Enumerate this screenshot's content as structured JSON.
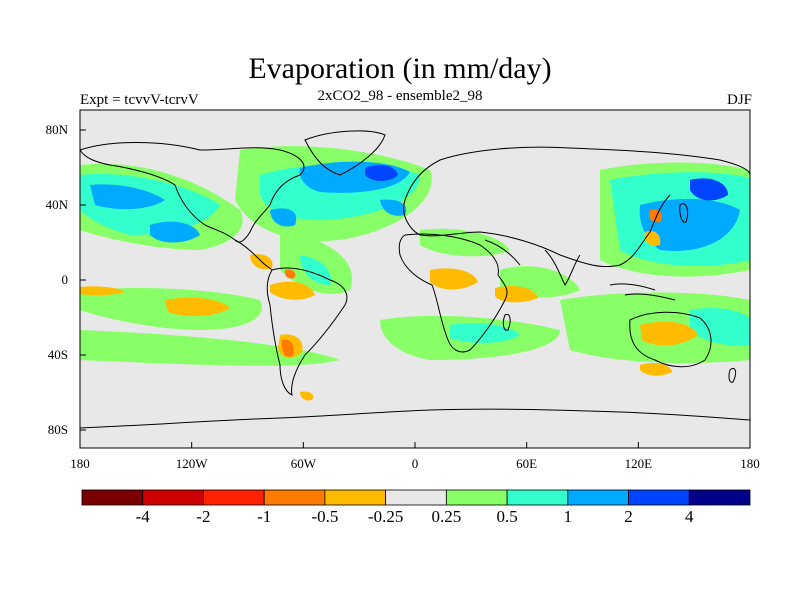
{
  "title": "Evaporation (in mm/day)",
  "experiment": "Expt = tcvvV-tcrvV",
  "subtitle": "2xCO2_98 - ensemble2_98",
  "season": "DJF",
  "lat_ticks": [
    "80N",
    "40N",
    "0",
    "40S",
    "80S"
  ],
  "lon_ticks": [
    "180",
    "120W",
    "60W",
    "0",
    "60E",
    "120E",
    "180"
  ],
  "colorbar": {
    "colors": [
      "#7a0000",
      "#cc0000",
      "#ff2200",
      "#ff7a00",
      "#ffbb00",
      "#e8e8e8",
      "#88ff66",
      "#33ffcc",
      "#00aaff",
      "#0044ff",
      "#000088"
    ],
    "labels": [
      "-4",
      "-2",
      "-1",
      "-0.5",
      "-0.25",
      "0.25",
      "0.5",
      "1",
      "2",
      "4"
    ]
  }
}
